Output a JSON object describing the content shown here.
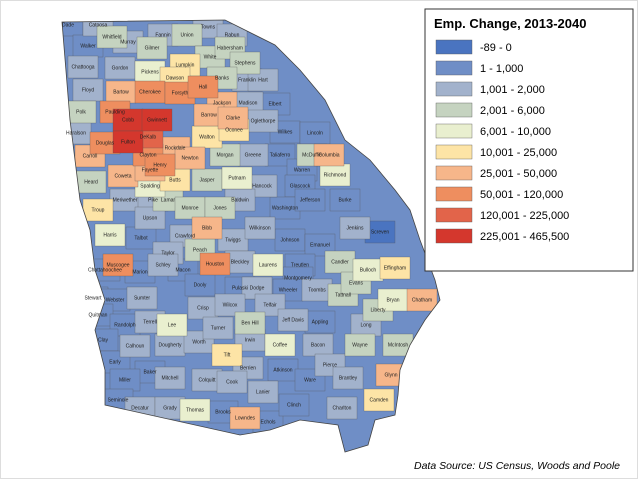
{
  "map": {
    "legend": {
      "title": "Emp. Change, 2013-2040",
      "items": [
        {
          "label": "-89 - 0",
          "color": "#4a74c0",
          "counties": [
            "Screven"
          ]
        },
        {
          "label": "1 - 1,000",
          "color": "#6f8ec6",
          "counties": [
            "Dade",
            "Walker",
            "Elbert",
            "Wilkes",
            "Lincoln",
            "Taliaferro",
            "Warren",
            "Glascock",
            "Washington",
            "Jefferson",
            "Burke",
            "Talbot",
            "Johnson",
            "Emanuel",
            "Chattahoochee",
            "Marion",
            "Macon",
            "Treutlen",
            "Montgomery",
            "Stewart",
            "Webster",
            "Dooly",
            "Pulaski",
            "Wheeler",
            "Quitman",
            "Randolph",
            "Appling",
            "Clay",
            "Early",
            "Baker",
            "Atkinson",
            "Ware",
            "Miller",
            "Seminole",
            "Brooks",
            "Echols",
            "Clinch"
          ]
        },
        {
          "label": "1,001 - 2,000",
          "color": "#a2b2cc",
          "counties": [
            "Catoosa",
            "Murray",
            "Fannin",
            "Towns",
            "Rabun",
            "Chattooga",
            "Gordon",
            "Franklin",
            "Hart",
            "Floyd",
            "Madison",
            "Oglethorpe",
            "Haralson",
            "Greene",
            "Hancock",
            "Meriwether",
            "Pike",
            "Baldwin",
            "Upson",
            "Crawford",
            "Twiggs",
            "Wilkinson",
            "Jenkins",
            "Taylor",
            "Bleckley",
            "Schley",
            "Sumter",
            "Dodge",
            "Toombs",
            "Terrell",
            "Crisp",
            "Wilcox",
            "Telfair",
            "Jeff Davis",
            "Long",
            "Calhoun",
            "Dougherty",
            "Worth",
            "Turner",
            "Irwin",
            "Bacon",
            "Pierce",
            "Mitchell",
            "Berrien",
            "Brantley",
            "Colquitt",
            "Cook",
            "Lanier",
            "Decatur",
            "Grady",
            "Charlton"
          ]
        },
        {
          "label": "2,001 - 6,000",
          "color": "#c5d3c0",
          "counties": [
            "Whitfield",
            "Union",
            "Gilmer",
            "White",
            "Habersham",
            "Stephens",
            "Banks",
            "Polk",
            "Morgan",
            "McDuffie",
            "Heard",
            "Jasper",
            "Lamar",
            "Monroe",
            "Jones",
            "Peach",
            "Candler",
            "Tattnall",
            "Evans",
            "Liberty",
            "McIntosh",
            "Ben Hill",
            "Wayne"
          ]
        },
        {
          "label": "6,001 - 10,000",
          "color": "#e9efcf",
          "counties": [
            "Pickens",
            "Richmond",
            "Spalding",
            "Putnam",
            "Harris",
            "Laurens",
            "Bulloch",
            "Bryan",
            "Lee",
            "Coffee",
            "Thomas"
          ]
        },
        {
          "label": "10,001 - 25,000",
          "color": "#fde4a6",
          "counties": [
            "Lumpkin",
            "Dawson",
            "Walton",
            "Oconee",
            "Butts",
            "Troup",
            "Effingham",
            "Tift",
            "Camden"
          ]
        },
        {
          "label": "25,001 - 50,000",
          "color": "#f6b68a",
          "counties": [
            "Bartow",
            "Jackson",
            "Barrow",
            "Clarke",
            "Rockdale",
            "Newton",
            "Columbia",
            "Carroll",
            "Coweta",
            "Fayette",
            "Bibb",
            "Chatham",
            "Glynn",
            "Lowndes"
          ]
        },
        {
          "label": "50,001 - 120,000",
          "color": "#ee8e5f",
          "counties": [
            "Cherokee",
            "Forsyth",
            "Hall",
            "Paulding",
            "Douglas",
            "Clayton",
            "Henry",
            "Muscogee",
            "Houston"
          ]
        },
        {
          "label": "120,001 - 225,000",
          "color": "#e2644a",
          "counties": [
            "DeKalb"
          ]
        },
        {
          "label": "225,001 - 465,500",
          "color": "#d4372d",
          "counties": [
            "Cobb",
            "Gwinnett",
            "Fulton"
          ]
        }
      ]
    },
    "source": "Data Source:  US Census, Woods and Poole"
  }
}
